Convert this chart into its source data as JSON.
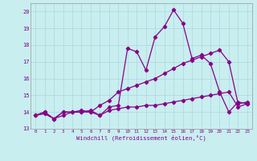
{
  "xlabel": "Windchill (Refroidissement éolien,°C)",
  "background_color": "#c8eef0",
  "grid_color": "#aed8dc",
  "line_color": "#880088",
  "xlim": [
    -0.5,
    23.5
  ],
  "ylim": [
    13.0,
    20.5
  ],
  "xticks": [
    0,
    1,
    2,
    3,
    4,
    5,
    6,
    7,
    8,
    9,
    10,
    11,
    12,
    13,
    14,
    15,
    16,
    17,
    18,
    19,
    20,
    21,
    22,
    23
  ],
  "yticks": [
    13,
    14,
    15,
    16,
    17,
    18,
    19,
    20
  ],
  "series": [
    [
      13.8,
      14.0,
      13.6,
      14.0,
      14.0,
      14.0,
      14.1,
      13.8,
      14.3,
      14.4,
      17.8,
      17.6,
      16.5,
      18.5,
      19.1,
      20.1,
      19.3,
      17.2,
      17.4,
      16.9,
      15.2,
      14.0,
      14.6,
      14.5
    ],
    [
      13.8,
      13.9,
      13.6,
      13.8,
      14.0,
      14.0,
      14.0,
      14.4,
      14.7,
      15.2,
      15.4,
      15.6,
      15.8,
      16.0,
      16.3,
      16.6,
      16.9,
      17.1,
      17.3,
      17.5,
      17.7,
      17.0,
      14.5,
      14.6
    ],
    [
      13.8,
      14.0,
      13.6,
      14.0,
      14.0,
      14.1,
      14.0,
      13.8,
      14.1,
      14.2,
      14.3,
      14.3,
      14.4,
      14.4,
      14.5,
      14.6,
      14.7,
      14.8,
      14.9,
      15.0,
      15.1,
      15.2,
      14.3,
      14.5
    ]
  ]
}
